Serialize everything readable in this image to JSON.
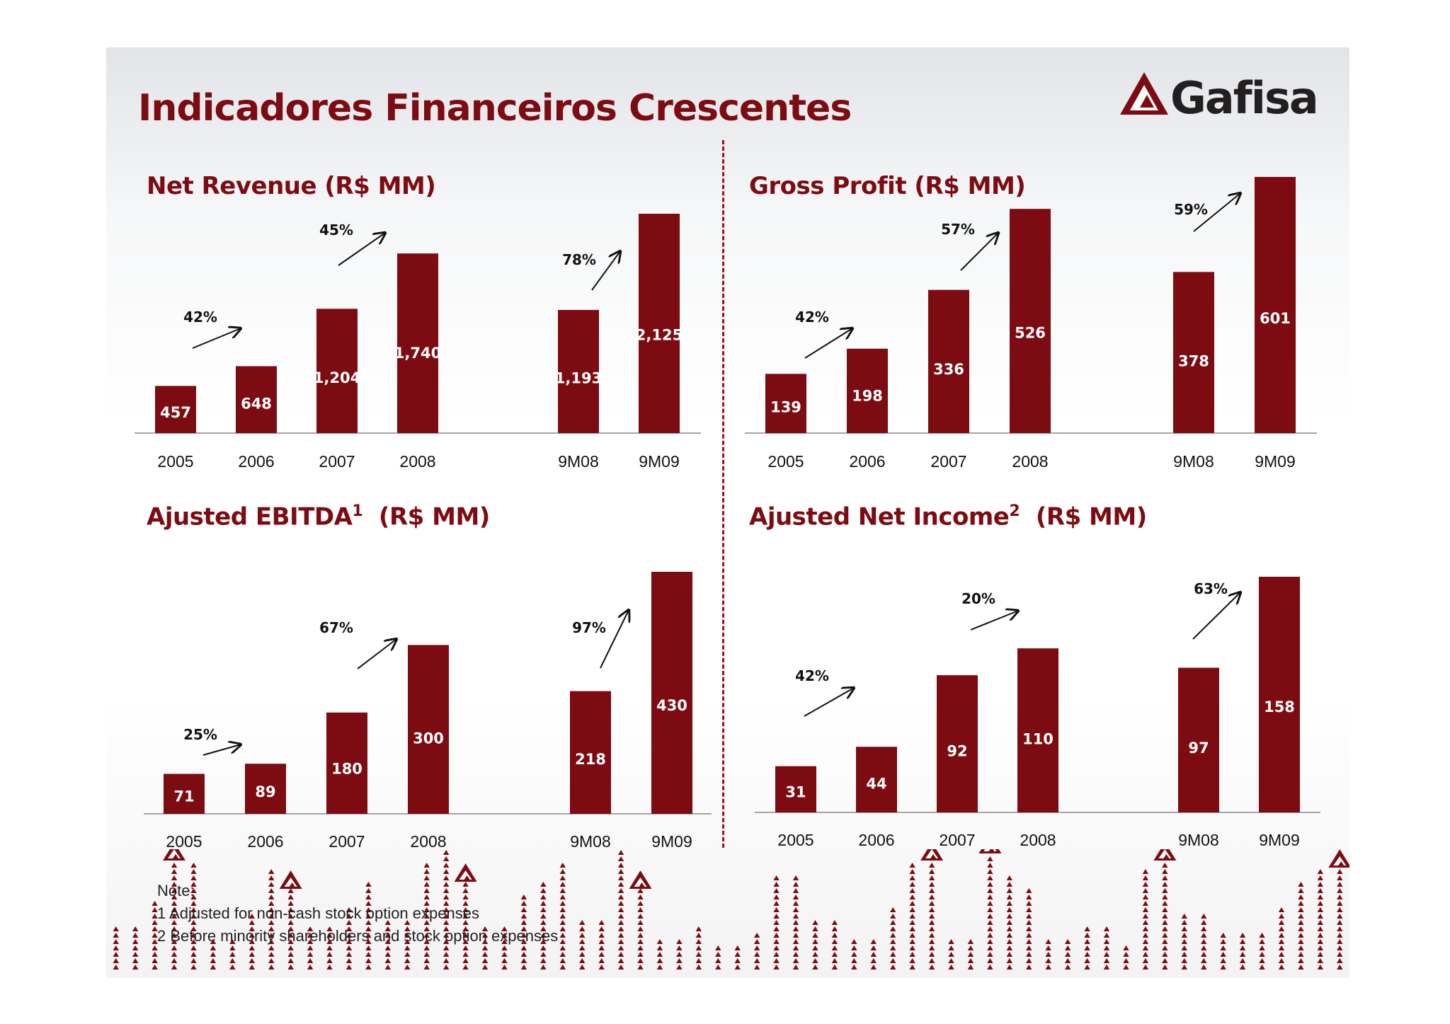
{
  "title": "Indicadores Financeiros Crescentes",
  "logo_text": "Gafisa",
  "colors": {
    "bar": "#7d0c12",
    "title": "#7d0c12",
    "axis": "#999999"
  },
  "notes": {
    "heading": "Note:",
    "line1": "1 Adjusted for non-cash stock option expenses",
    "line2": "2 Before minority shareholders and stock option expenses"
  },
  "chart_data": [
    {
      "type": "bar",
      "title": "Net Revenue  (R$ MM)",
      "title_sup": "",
      "title_suffix": "",
      "categories": [
        "2005",
        "2006",
        "2007",
        "2008",
        "9M08",
        "9M09"
      ],
      "values": [
        457,
        648,
        1204,
        1740,
        1193,
        2125
      ],
      "data_labels": [
        "457",
        "648",
        "1,204",
        "1,740",
        "1,193",
        "2,125"
      ],
      "growth": [
        {
          "label": "42%",
          "between": [
            0,
            1
          ]
        },
        {
          "label": "45%",
          "between": [
            2,
            3
          ]
        },
        {
          "label": "78%",
          "between": [
            4,
            5
          ]
        }
      ]
    },
    {
      "type": "bar",
      "title": "Gross Profit (R$ MM)",
      "title_sup": "",
      "title_suffix": "",
      "categories": [
        "2005",
        "2006",
        "2007",
        "2008",
        "9M08",
        "9M09"
      ],
      "values": [
        139,
        198,
        336,
        526,
        378,
        601
      ],
      "data_labels": [
        "139",
        "198",
        "336",
        "526",
        "378",
        "601"
      ],
      "growth": [
        {
          "label": "42%",
          "between": [
            0,
            1
          ]
        },
        {
          "label": "57%",
          "between": [
            2,
            3
          ]
        },
        {
          "label": "59%",
          "between": [
            4,
            5
          ]
        }
      ]
    },
    {
      "type": "bar",
      "title": "Ajusted EBITDA",
      "title_sup": "1",
      "title_suffix": "  (R$ MM)",
      "categories": [
        "2005",
        "2006",
        "2007",
        "2008",
        "9M08",
        "9M09"
      ],
      "values": [
        71,
        89,
        180,
        300,
        218,
        430
      ],
      "data_labels": [
        "71",
        "89",
        "180",
        "300",
        "218",
        "430"
      ],
      "growth": [
        {
          "label": "25%",
          "between": [
            0,
            1
          ]
        },
        {
          "label": "67%",
          "between": [
            2,
            3
          ]
        },
        {
          "label": "97%",
          "between": [
            4,
            5
          ]
        }
      ]
    },
    {
      "type": "bar",
      "title": "Ajusted Net Income",
      "title_sup": "2",
      "title_suffix": "  (R$ MM)",
      "categories": [
        "2005",
        "2006",
        "2007",
        "2008",
        "9M08",
        "9M09"
      ],
      "values": [
        31,
        44,
        92,
        110,
        97,
        158
      ],
      "data_labels": [
        "31",
        "44",
        "92",
        "110",
        "97",
        "158"
      ],
      "growth": [
        {
          "label": "42%",
          "between": [
            0,
            1
          ]
        },
        {
          "label": "20%",
          "between": [
            2,
            3
          ]
        },
        {
          "label": "63%",
          "between": [
            4,
            5
          ]
        }
      ]
    }
  ]
}
